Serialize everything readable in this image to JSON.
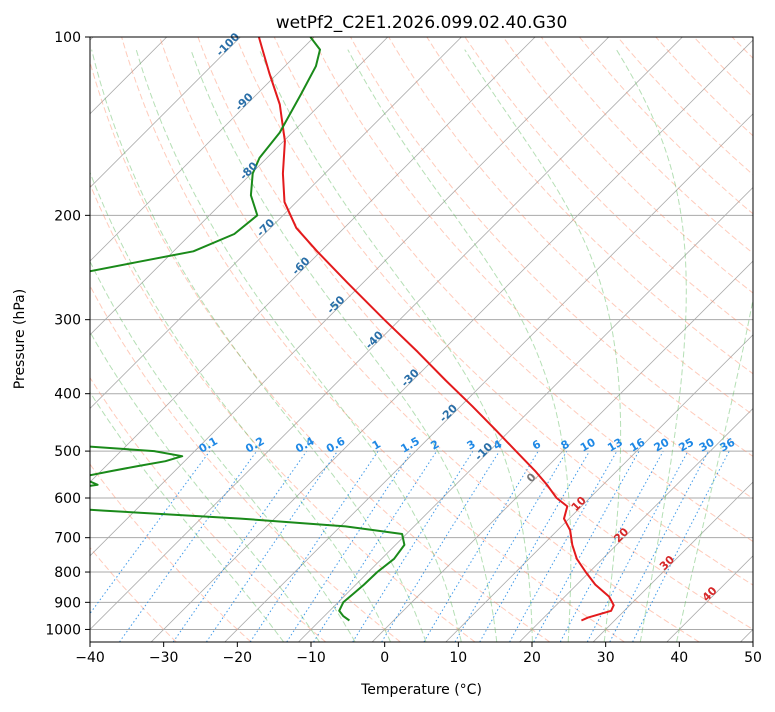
{
  "chart_data": {
    "type": "line",
    "subtype": "skew-T log-P diagram",
    "title": "wetPf2_C2E1.2026.099.02.40.G30",
    "xlabel": "Temperature (°C)",
    "ylabel": "Pressure (hPa)",
    "xlim": [
      -40,
      50
    ],
    "ylim": [
      1050,
      100
    ],
    "y_scale": "log",
    "grid": true,
    "x_ticks": [
      -40,
      -30,
      -20,
      -10,
      0,
      10,
      20,
      30,
      40,
      50
    ],
    "x_tick_labels": [
      "−40",
      "−30",
      "−20",
      "−10",
      "0",
      "10",
      "20",
      "30",
      "40",
      "50"
    ],
    "y_ticks": [
      1000,
      900,
      800,
      700,
      600,
      500,
      400,
      300,
      200,
      100
    ],
    "y_tick_labels": [
      "1000",
      "900",
      "800",
      "700",
      "600",
      "500",
      "400",
      "300",
      "200",
      "100"
    ],
    "temperature_color": "#e31a1c",
    "dewpoint_color": "#1a8a1a",
    "series": [
      {
        "kind": "temperature",
        "color": "#e31a1c",
        "p": [
          966,
          955,
          930,
          910,
          880,
          840,
          800,
          760,
          720,
          680,
          650,
          620,
          600,
          570,
          540,
          500,
          460,
          420,
          380,
          340,
          300,
          260,
          230,
          210,
          190,
          170,
          150,
          130,
          115,
          105,
          100
        ],
        "t": [
          25.5,
          26.0,
          28.2,
          27.8,
          26.0,
          22.5,
          19.5,
          16.5,
          14.0,
          11.7,
          9.3,
          8.1,
          5.5,
          2.4,
          -1.1,
          -6.4,
          -12.1,
          -18.4,
          -25.5,
          -33.2,
          -42.1,
          -52.1,
          -60.5,
          -66.5,
          -71.6,
          -75.7,
          -79.8,
          -85.5,
          -91.2,
          -95.3,
          -97.5
        ]
      },
      {
        "kind": "dewpoint",
        "color": "#1a8a1a",
        "p": [
          966,
          950,
          930,
          900,
          870,
          840,
          800,
          760,
          720,
          690,
          670,
          650,
          630,
          615,
          605,
          600,
          590,
          580,
          570,
          560,
          550,
          540,
          530,
          520,
          510,
          500,
          490,
          480,
          475,
          470,
          440,
          400,
          370,
          340,
          310,
          290,
          270,
          255,
          250,
          240,
          230,
          215,
          200,
          185,
          170,
          160,
          145,
          125,
          112,
          105,
          100
        ],
        "t": [
          -6.0,
          -7.4,
          -8.7,
          -9.3,
          -9.1,
          -8.9,
          -8.8,
          -8.3,
          -8.8,
          -10.6,
          -19.3,
          -34.6,
          -54.3,
          -68.3,
          -73.5,
          -74.9,
          -69.3,
          -62.3,
          -58.6,
          -60.6,
          -61.1,
          -58.5,
          -55.7,
          -52.6,
          -51.0,
          -55.5,
          -66.3,
          -78.4,
          -82.0,
          -82.5,
          -83.2,
          -83.6,
          -82.3,
          -81.4,
          -82.0,
          -85.5,
          -89.5,
          -91.1,
          -89.5,
          -83.6,
          -77.3,
          -74.1,
          -73.5,
          -77.1,
          -79.8,
          -81.0,
          -81.7,
          -84.0,
          -85.8,
          -87.5,
          -90.5
        ]
      }
    ],
    "reference_lines": {
      "dry_adiabats": "dashed, light orange",
      "moist_adiabats": "dashed, light green",
      "mixing_ratio_lines": "dotted, blue",
      "isotherms": "solid, grey, skewed"
    },
    "mixing_ratio_labels": [
      "0.1",
      "0.2",
      "0.4",
      "0.6",
      "1",
      "1.5",
      "2",
      "3",
      "4",
      "6",
      "8",
      "10",
      "13",
      "16",
      "20",
      "25",
      "30",
      "36"
    ],
    "isotherm_labels_blue": [
      "-100",
      "-90",
      "-80",
      "-70",
      "-60",
      "-50",
      "-40",
      "-30",
      "-20",
      "-10"
    ],
    "isotherm_labels_red": [
      "10",
      "20",
      "30",
      "40"
    ],
    "isotherm_label_gray": "0",
    "colors": {
      "isotherm_label_blue": "#2a6fa8",
      "isotherm_label_red": "#d62728",
      "isotherm_label_gray": "#777777",
      "mixing_ratio": "#1e88e5",
      "dry_adiabat": "#ff8c69",
      "moist_adiabat": "#5cb85c",
      "grid": "#aaaaaa"
    }
  }
}
